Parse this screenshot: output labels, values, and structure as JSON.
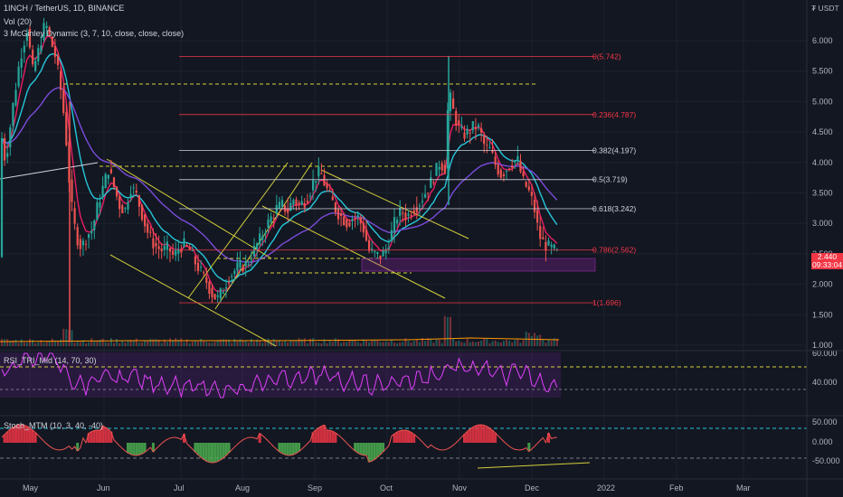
{
  "header": {
    "symbol_line": "1INCH / TetherUS, 1D, BINANCE",
    "vol_line": "Vol (20)",
    "mcginley_line": "3 McGinley Dynamic (3, 7, 10, close, close, close)",
    "currency": "₮ USDT"
  },
  "last_price": {
    "value": "2.440",
    "countdown": "09:33:04"
  },
  "colors": {
    "background": "#131722",
    "up": "#26a69a",
    "down": "#ef5350",
    "fib_red": "#f23645",
    "fib_white": "#d1d4dc",
    "channel": "#d4d03a",
    "mcginley_red": "#e91e63",
    "mcginley_teal": "#26c6da",
    "mcginley_purple": "#7b4cdb",
    "rsi": "#e040fb",
    "stoch_line": "#ef5350",
    "stoch_pos": "#f23645",
    "stoch_neg": "#4caf50"
  },
  "chart_data": [
    {
      "type": "candlestick",
      "symbol": "1INCH / TetherUS",
      "timeframe": "1D",
      "exchange": "BINANCE",
      "y_axis": {
        "ticks": [
          "6.000",
          "5.500",
          "5.000",
          "4.500",
          "4.000",
          "3.500",
          "3.000",
          "2.500",
          "2.000",
          "1.500",
          "1.000"
        ],
        "ylim": [
          0.95,
          6.45
        ]
      },
      "x_axis": {
        "ticks": [
          "May",
          "Jun",
          "Jul",
          "Aug",
          "Sep",
          "Oct",
          "Nov",
          "Dec",
          "2022",
          "Feb",
          "Mar"
        ]
      },
      "price_path": [
        [
          0,
          4.6
        ],
        [
          6,
          4.0
        ],
        [
          14,
          4.9
        ],
        [
          22,
          5.7
        ],
        [
          30,
          6.2
        ],
        [
          36,
          5.5
        ],
        [
          42,
          5.8
        ],
        [
          50,
          6.3
        ],
        [
          56,
          6.0
        ],
        [
          62,
          5.7
        ],
        [
          68,
          5.1
        ],
        [
          72,
          4.6
        ],
        [
          78,
          3.4
        ],
        [
          84,
          2.8
        ],
        [
          90,
          2.6
        ],
        [
          96,
          2.8
        ],
        [
          102,
          2.9
        ],
        [
          108,
          3.3
        ],
        [
          114,
          3.6
        ],
        [
          120,
          3.9
        ],
        [
          126,
          3.6
        ],
        [
          132,
          3.3
        ],
        [
          138,
          3.2
        ],
        [
          144,
          3.6
        ],
        [
          150,
          3.5
        ],
        [
          156,
          3.2
        ],
        [
          162,
          2.9
        ],
        [
          168,
          2.7
        ],
        [
          174,
          2.6
        ],
        [
          180,
          2.55
        ],
        [
          186,
          2.6
        ],
        [
          192,
          2.45
        ],
        [
          198,
          2.6
        ],
        [
          204,
          2.65
        ],
        [
          210,
          2.55
        ],
        [
          216,
          2.35
        ],
        [
          222,
          2.2
        ],
        [
          228,
          2.05
        ],
        [
          234,
          1.85
        ],
        [
          240,
          1.75
        ],
        [
          246,
          1.9
        ],
        [
          252,
          2.1
        ],
        [
          258,
          2.2
        ],
        [
          264,
          2.3
        ],
        [
          270,
          2.3
        ],
        [
          276,
          2.4
        ],
        [
          282,
          2.6
        ],
        [
          288,
          2.75
        ],
        [
          294,
          2.95
        ],
        [
          300,
          3.1
        ],
        [
          306,
          3.25
        ],
        [
          312,
          3.3
        ],
        [
          318,
          3.2
        ],
        [
          324,
          3.4
        ],
        [
          330,
          3.3
        ],
        [
          336,
          3.35
        ],
        [
          342,
          3.5
        ],
        [
          348,
          3.75
        ],
        [
          354,
          3.85
        ],
        [
          360,
          3.6
        ],
        [
          366,
          3.4
        ],
        [
          372,
          3.2
        ],
        [
          378,
          3.1
        ],
        [
          384,
          3.0
        ],
        [
          390,
          3.1
        ],
        [
          396,
          3.1
        ],
        [
          402,
          2.9
        ],
        [
          408,
          2.55
        ],
        [
          414,
          2.5
        ],
        [
          420,
          2.45
        ],
        [
          426,
          2.55
        ],
        [
          432,
          2.8
        ],
        [
          438,
          3.1
        ],
        [
          444,
          3.2
        ],
        [
          450,
          3.1
        ],
        [
          456,
          3.25
        ],
        [
          462,
          3.3
        ],
        [
          468,
          3.45
        ],
        [
          474,
          3.6
        ],
        [
          480,
          3.8
        ],
        [
          486,
          4.0
        ],
        [
          492,
          3.9
        ],
        [
          496,
          5.2
        ],
        [
          500,
          4.9
        ],
        [
          506,
          4.6
        ],
        [
          512,
          4.45
        ],
        [
          518,
          4.5
        ],
        [
          524,
          4.6
        ],
        [
          530,
          4.55
        ],
        [
          536,
          4.25
        ],
        [
          542,
          4.2
        ],
        [
          548,
          3.95
        ],
        [
          554,
          3.8
        ],
        [
          560,
          3.9
        ],
        [
          566,
          4.0
        ],
        [
          572,
          4.05
        ],
        [
          578,
          3.7
        ],
        [
          584,
          3.55
        ],
        [
          590,
          3.3
        ],
        [
          596,
          2.8
        ],
        [
          602,
          2.65
        ],
        [
          608,
          2.6
        ],
        [
          614,
          2.55
        ],
        [
          618,
          2.45
        ]
      ],
      "fib_levels": [
        {
          "ratio": "0",
          "price": "5.742",
          "label": "0(5.742)",
          "color": "red"
        },
        {
          "ratio": "0.236",
          "price": "4.787",
          "label": "0.236(4.787)",
          "color": "red"
        },
        {
          "ratio": "0.382",
          "price": "4.197",
          "label": "0.382(4.197)",
          "color": "white"
        },
        {
          "ratio": "0.5",
          "price": "3.719",
          "label": "0.5(3.719)",
          "color": "white"
        },
        {
          "ratio": "0.618",
          "price": "3.242",
          "label": "0.618(3.242)",
          "color": "white"
        },
        {
          "ratio": "0.786",
          "price": "2.562",
          "label": "0.786(2.562)",
          "color": "red"
        },
        {
          "ratio": "1",
          "price": "1.696",
          "label": "1(1.696)",
          "color": "red"
        }
      ]
    },
    {
      "type": "line",
      "name": "RSI_TRI_Mid (14, 70, 30)",
      "y_axis": {
        "ticks": [
          "60.000",
          "40.000"
        ]
      }
    },
    {
      "type": "area",
      "name": "Stoch_MTM (10, 3, 40, -40)",
      "y_axis": {
        "ticks": [
          "50.000",
          "0.000",
          "-50.000"
        ]
      }
    }
  ]
}
